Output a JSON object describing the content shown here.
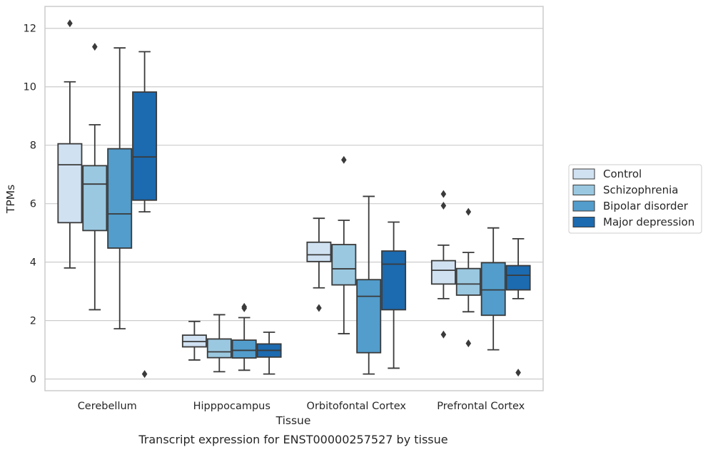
{
  "chart_data": {
    "type": "box",
    "caption": "Transcript expression for ENST00000257527 by tissue",
    "xlabel": "Tissue",
    "ylabel": "TPMs",
    "ylim": [
      -0.4,
      12.75
    ],
    "yticks": [
      0,
      2,
      4,
      6,
      8,
      10,
      12
    ],
    "grid": true,
    "legend_position": "right",
    "categories": [
      "Cerebellum",
      "Hipppocampus",
      "Orbitofontal Cortex",
      "Prefrontal Cortex"
    ],
    "series": [
      {
        "name": "Control",
        "color": "#d0e1f2",
        "boxes": [
          {
            "whislo": 3.8,
            "q1": 5.35,
            "med": 7.33,
            "q3": 8.05,
            "whishi": 10.17,
            "fliers": [
              12.17
            ]
          },
          {
            "whislo": 0.65,
            "q1": 1.1,
            "med": 1.28,
            "q3": 1.5,
            "whishi": 1.97,
            "fliers": []
          },
          {
            "whislo": 3.12,
            "q1": 4.02,
            "med": 4.25,
            "q3": 4.68,
            "whishi": 5.5,
            "fliers": [
              2.43
            ]
          },
          {
            "whislo": 2.75,
            "q1": 3.25,
            "med": 3.72,
            "q3": 4.05,
            "whishi": 4.58,
            "fliers": [
              6.33,
              5.93,
              1.52
            ]
          }
        ]
      },
      {
        "name": "Schizophrenia",
        "color": "#9ac8e0",
        "boxes": [
          {
            "whislo": 2.37,
            "q1": 5.08,
            "med": 6.67,
            "q3": 7.3,
            "whishi": 8.7,
            "fliers": [
              11.37
            ]
          },
          {
            "whislo": 0.25,
            "q1": 0.73,
            "med": 0.93,
            "q3": 1.37,
            "whishi": 2.2,
            "fliers": []
          },
          {
            "whislo": 1.55,
            "q1": 3.22,
            "med": 3.77,
            "q3": 4.6,
            "whishi": 5.43,
            "fliers": [
              7.5
            ]
          },
          {
            "whislo": 2.3,
            "q1": 2.87,
            "med": 3.25,
            "q3": 3.78,
            "whishi": 4.33,
            "fliers": [
              5.72,
              1.22
            ]
          }
        ]
      },
      {
        "name": "Bipolar disorder",
        "color": "#529dcc",
        "boxes": [
          {
            "whislo": 1.72,
            "q1": 4.48,
            "med": 5.65,
            "q3": 7.88,
            "whishi": 11.33,
            "fliers": []
          },
          {
            "whislo": 0.3,
            "q1": 0.72,
            "med": 0.98,
            "q3": 1.33,
            "whishi": 2.1,
            "fliers": [
              2.42,
              2.47
            ]
          },
          {
            "whislo": 0.17,
            "q1": 0.9,
            "med": 2.83,
            "q3": 3.4,
            "whishi": 6.25,
            "fliers": []
          },
          {
            "whislo": 1.0,
            "q1": 2.18,
            "med": 3.05,
            "q3": 3.98,
            "whishi": 5.17,
            "fliers": []
          }
        ]
      },
      {
        "name": "Major depression",
        "color": "#1c6aaf",
        "boxes": [
          {
            "whislo": 5.72,
            "q1": 6.12,
            "med": 7.6,
            "q3": 9.82,
            "whishi": 11.2,
            "fliers": [
              0.17
            ]
          },
          {
            "whislo": 0.17,
            "q1": 0.75,
            "med": 0.98,
            "q3": 1.2,
            "whishi": 1.6,
            "fliers": []
          },
          {
            "whislo": 0.37,
            "q1": 2.37,
            "med": 3.93,
            "q3": 4.38,
            "whishi": 5.37,
            "fliers": []
          },
          {
            "whislo": 2.75,
            "q1": 3.05,
            "med": 3.55,
            "q3": 3.88,
            "whishi": 4.8,
            "fliers": [
              0.22
            ]
          }
        ]
      }
    ]
  }
}
